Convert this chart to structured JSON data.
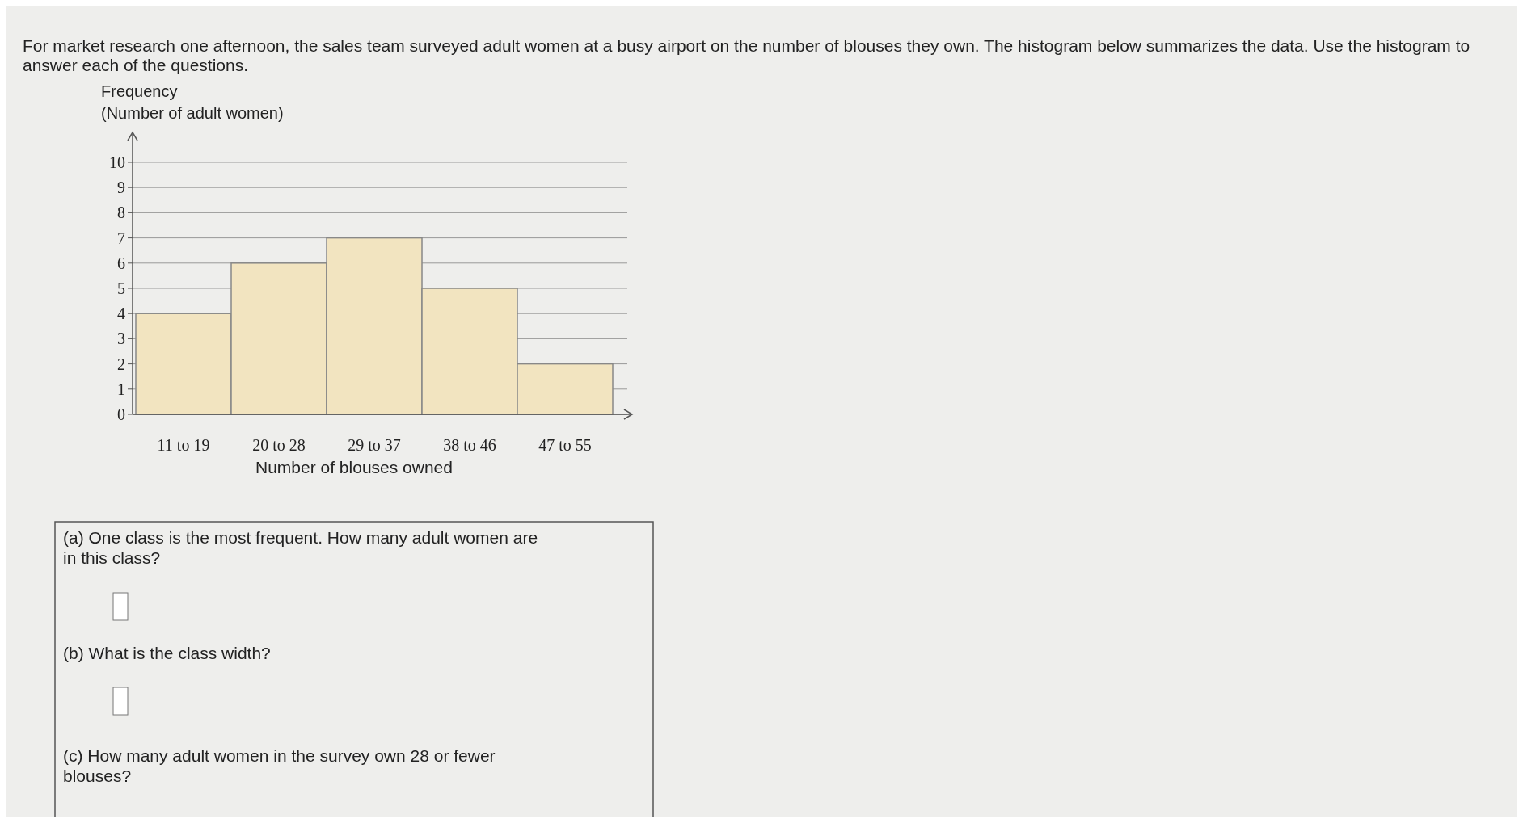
{
  "chart_data": {
    "type": "bar",
    "title": "For market research one afternoon, the sales team surveyed adult women at a busy airport on the number of blouses they own. The histogram below summarizes the data. Use the histogram to answer each of the questions.",
    "ylabel": "Frequency\n(Number of adult women)",
    "xlabel": "Number of blouses owned",
    "categories": [
      "11 to 19",
      "20 to 28",
      "29 to 37",
      "38 to 46",
      "47 to 55"
    ],
    "values": [
      4,
      6,
      7,
      5,
      2
    ],
    "color": "#f2e4c0",
    "ylim": [
      0,
      10
    ],
    "yticks": [
      0,
      1,
      2,
      3,
      4,
      5,
      6,
      7,
      8,
      9,
      10
    ],
    "grid": "y",
    "annotations": [
      "(a) One class is the most frequent. How many adult women are in this class?",
      "(b) What is the class width?",
      "(c) How many adult women in the survey own 28 or fewer blouses?"
    ]
  }
}
